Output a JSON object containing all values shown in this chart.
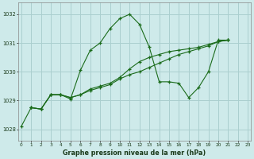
{
  "title": "Graphe pression niveau de la mer (hPa)",
  "background_color": "#ceeaea",
  "grid_color": "#aacfcf",
  "line_color": "#1a6b1a",
  "x_ticks": [
    0,
    1,
    2,
    3,
    4,
    5,
    6,
    7,
    8,
    9,
    10,
    11,
    12,
    13,
    14,
    15,
    16,
    17,
    18,
    19,
    20,
    21,
    22,
    23
  ],
  "y_ticks": [
    1028,
    1029,
    1030,
    1031,
    1032
  ],
  "ylim": [
    1027.6,
    1032.4
  ],
  "xlim": [
    -0.3,
    23.3
  ],
  "series": [
    {
      "x": [
        0,
        1,
        2,
        3,
        4,
        5,
        6,
        7,
        8,
        9,
        10,
        11,
        12,
        13,
        14,
        15,
        16,
        17,
        18,
        19,
        20,
        21
      ],
      "y": [
        1028.1,
        1028.75,
        1028.7,
        1029.2,
        1029.2,
        1029.05,
        1030.05,
        1030.75,
        1031.0,
        1031.5,
        1031.85,
        1032.0,
        1031.65,
        1030.85,
        1029.65,
        1029.65,
        1029.6,
        1029.1,
        1029.45,
        1030.0,
        1031.1,
        1031.1
      ]
    },
    {
      "x": [
        1,
        2,
        3,
        4,
        5,
        6,
        7,
        8,
        9,
        10,
        11,
        12,
        13,
        14,
        15,
        16,
        17,
        18,
        19,
        20,
        21
      ],
      "y": [
        1028.75,
        1028.7,
        1029.2,
        1029.2,
        1029.1,
        1029.2,
        1029.35,
        1029.45,
        1029.55,
        1029.75,
        1029.9,
        1030.0,
        1030.15,
        1030.3,
        1030.45,
        1030.6,
        1030.7,
        1030.8,
        1030.9,
        1031.05,
        1031.1
      ]
    },
    {
      "x": [
        1,
        2,
        3,
        4,
        5,
        6,
        7,
        8,
        9,
        10,
        11,
        12,
        13,
        14,
        15,
        16,
        17,
        18,
        19,
        20,
        21
      ],
      "y": [
        1028.75,
        1028.7,
        1029.2,
        1029.2,
        1029.1,
        1029.2,
        1029.4,
        1029.5,
        1029.6,
        1029.8,
        1030.1,
        1030.35,
        1030.5,
        1030.6,
        1030.7,
        1030.75,
        1030.8,
        1030.85,
        1030.95,
        1031.05,
        1031.1
      ]
    }
  ]
}
